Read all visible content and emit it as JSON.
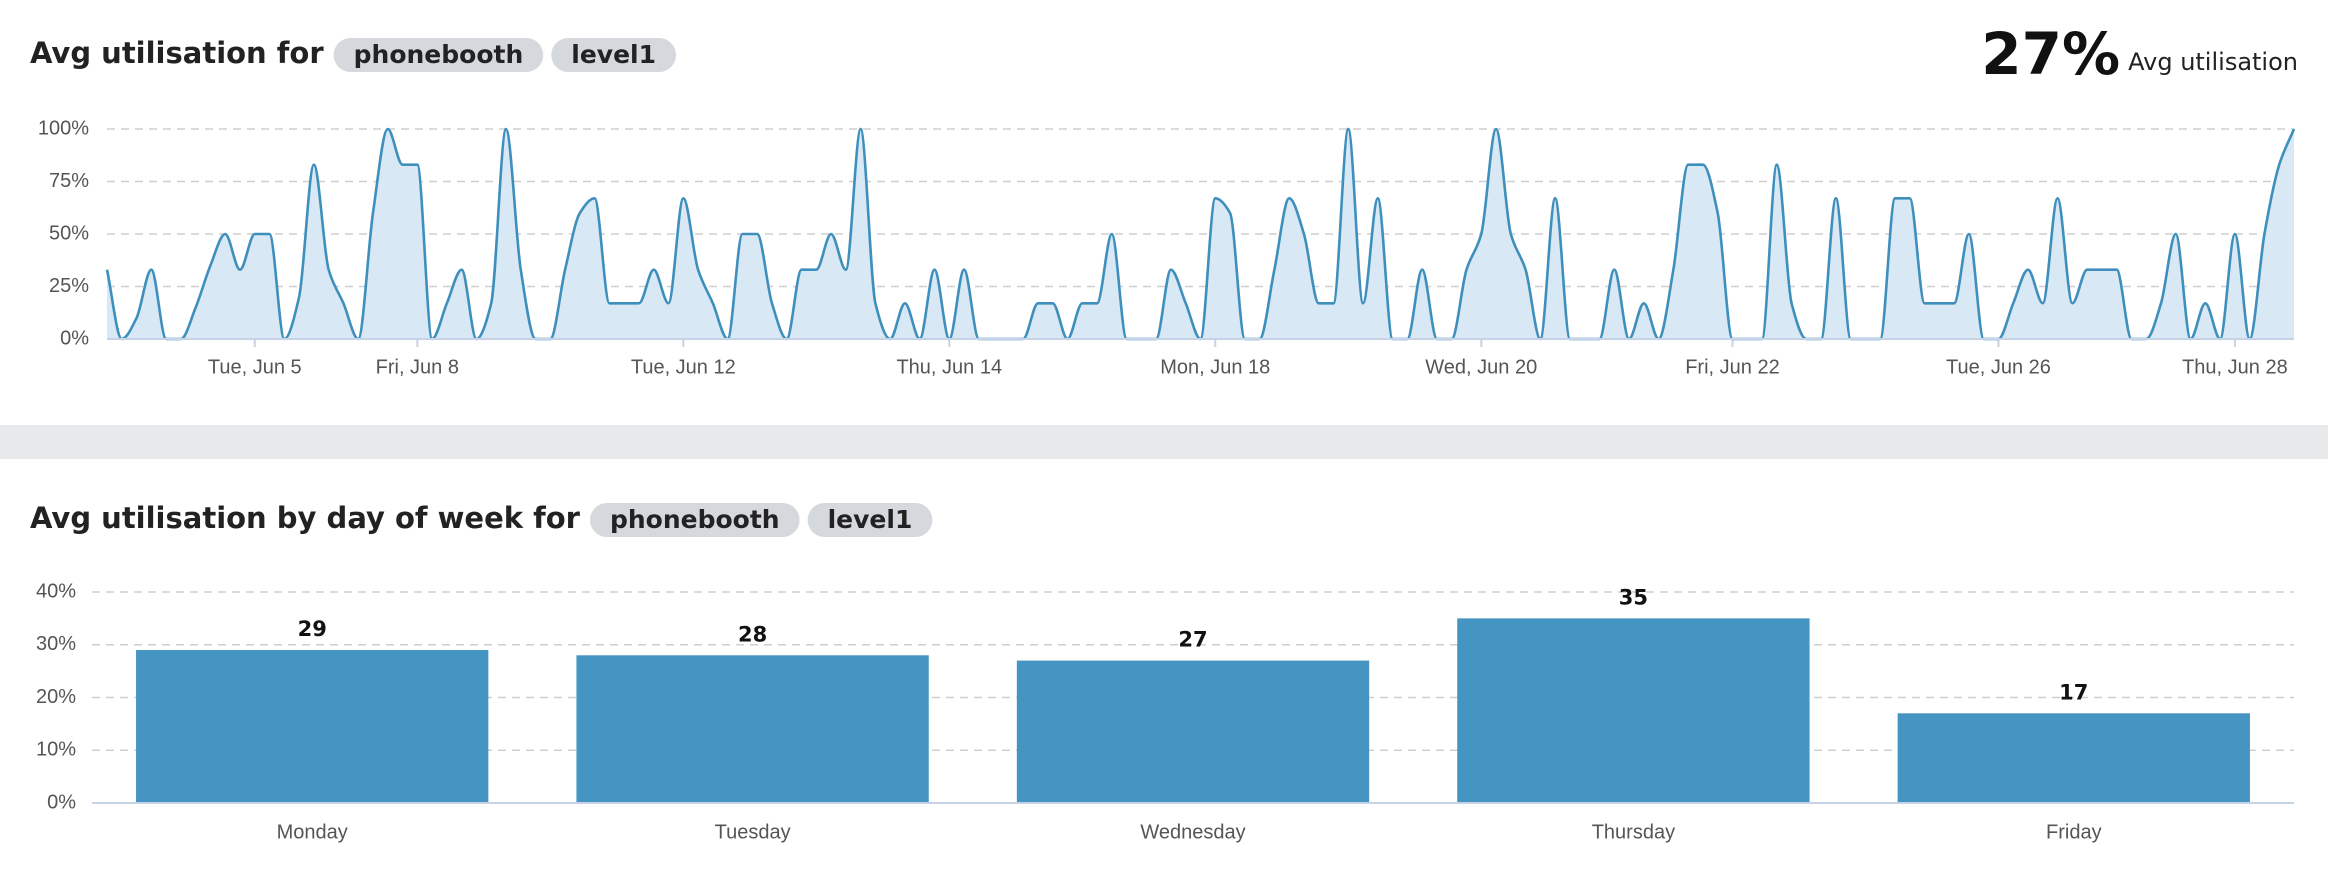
{
  "summary": {
    "value": "27%",
    "caption": "Avg utilisation"
  },
  "chart_data": [
    {
      "type": "area",
      "title": "Avg utilisation for",
      "filters": [
        "phonebooth",
        "level1"
      ],
      "color": "#3f8fbd",
      "fill": "#d9e8f5",
      "categories": [
        null,
        null,
        null,
        null,
        null,
        null,
        null,
        null,
        null,
        null,
        "Tue, Jun 5",
        null,
        null,
        null,
        null,
        null,
        null,
        null,
        null,
        null,
        null,
        "Fri, Jun 8",
        null,
        null,
        null,
        null,
        null,
        null,
        null,
        null,
        null,
        null,
        null,
        null,
        null,
        null,
        null,
        null,
        null,
        "Tue, Jun 12",
        null,
        null,
        null,
        null,
        null,
        null,
        null,
        null,
        null,
        null,
        null,
        null,
        null,
        null,
        null,
        null,
        null,
        "Thu, Jun 14",
        null,
        null,
        null,
        null,
        null,
        null,
        null,
        null,
        null,
        null,
        null,
        null,
        null,
        null,
        null,
        null,
        null,
        "Mon, Jun 18",
        null,
        null,
        null,
        null,
        null,
        null,
        null,
        null,
        null,
        null,
        null,
        null,
        null,
        null,
        null,
        null,
        null,
        "Wed, Jun 20",
        null,
        null,
        null,
        null,
        null,
        null,
        null,
        null,
        null,
        null,
        null,
        null,
        null,
        null,
        null,
        null,
        "Fri, Jun 22",
        null,
        null,
        null,
        null,
        null,
        null,
        null,
        null,
        null,
        null,
        null,
        null,
        null,
        null,
        null,
        null,
        null,
        "Tue, Jun 26",
        null,
        null,
        null,
        null,
        null,
        null,
        null,
        null,
        null,
        null,
        null,
        null,
        null,
        null,
        null,
        "Thu, Jun 28",
        null,
        null,
        null,
        null
      ],
      "values": [
        33,
        0,
        10,
        33,
        0,
        0,
        15,
        35,
        50,
        33,
        50,
        50,
        0,
        20,
        83,
        33,
        17,
        0,
        60,
        100,
        83,
        83,
        0,
        17,
        33,
        0,
        17,
        100,
        33,
        0,
        0,
        33,
        60,
        67,
        17,
        17,
        17,
        33,
        17,
        67,
        33,
        17,
        0,
        50,
        50,
        17,
        0,
        33,
        33,
        50,
        33,
        100,
        17,
        0,
        17,
        0,
        33,
        0,
        33,
        0,
        0,
        0,
        0,
        17,
        17,
        0,
        17,
        17,
        50,
        0,
        0,
        0,
        33,
        17,
        0,
        67,
        60,
        0,
        0,
        33,
        67,
        50,
        17,
        17,
        100,
        17,
        67,
        0,
        0,
        33,
        0,
        0,
        33,
        50,
        100,
        50,
        33,
        0,
        67,
        0,
        0,
        0,
        33,
        0,
        17,
        0,
        33,
        83,
        83,
        60,
        0,
        0,
        0,
        83,
        17,
        0,
        0,
        67,
        0,
        0,
        0,
        67,
        67,
        17,
        17,
        17,
        50,
        0,
        0,
        17,
        33,
        17,
        67,
        17,
        33,
        33,
        33,
        0,
        0,
        17,
        50,
        0,
        17,
        0,
        50,
        0,
        50,
        83,
        100
      ],
      "ylim": [
        0,
        100
      ],
      "yticks": [
        {
          "value": 0,
          "label": "0%"
        },
        {
          "value": 25,
          "label": "25%"
        },
        {
          "value": 50,
          "label": "50%"
        },
        {
          "value": 75,
          "label": "75%"
        },
        {
          "value": 100,
          "label": "100%"
        }
      ],
      "grid": true
    },
    {
      "type": "bar",
      "title": "Avg utilisation by day of week for",
      "filters": [
        "phonebooth",
        "level1"
      ],
      "color": "#4595c2",
      "categories": [
        "Monday",
        "Tuesday",
        "Wednesday",
        "Thursday",
        "Friday"
      ],
      "values": [
        29,
        28,
        27,
        35,
        17
      ],
      "ylim": [
        0,
        40
      ],
      "yticks": [
        {
          "value": 0,
          "label": "0%"
        },
        {
          "value": 10,
          "label": "10%"
        },
        {
          "value": 20,
          "label": "20%"
        },
        {
          "value": 30,
          "label": "30%"
        },
        {
          "value": 40,
          "label": "40%"
        }
      ],
      "grid": true
    }
  ]
}
